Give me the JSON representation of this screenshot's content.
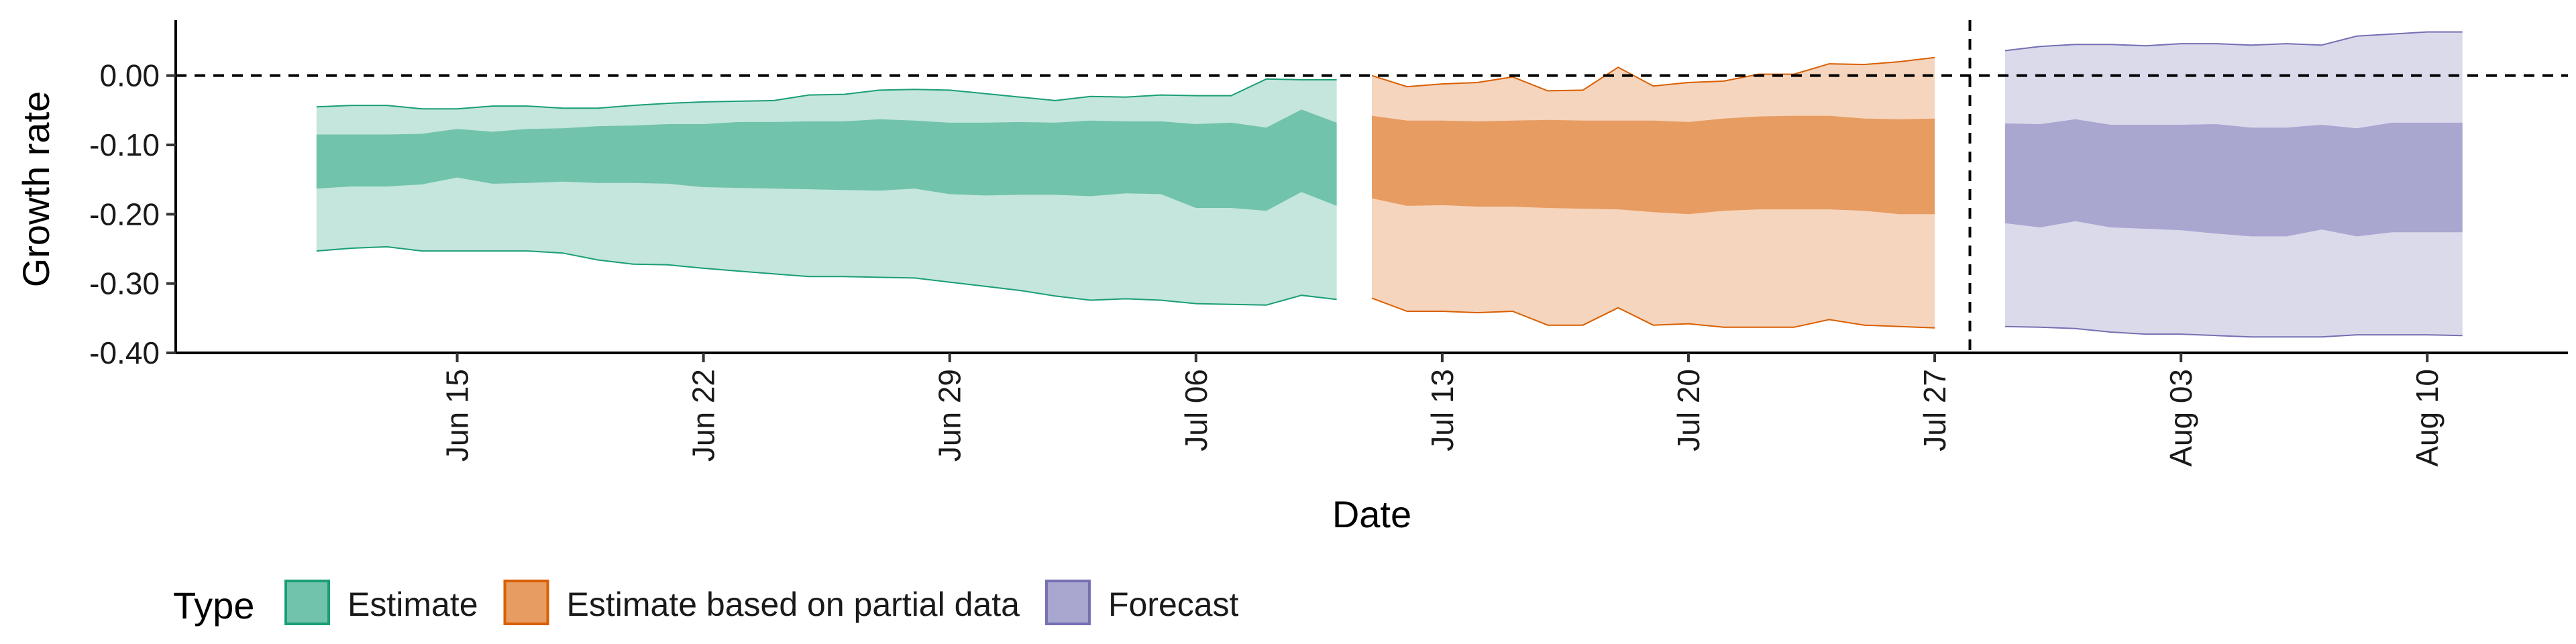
{
  "chart_data": {
    "type": "area",
    "title": "",
    "xlabel": "Date",
    "ylabel": "Growth rate",
    "x_range": [
      "2020-06-07",
      "2020-08-14"
    ],
    "ylim": [
      -0.4,
      0.08
    ],
    "y_ticks": [
      0.0,
      -0.1,
      -0.2,
      -0.3,
      -0.4
    ],
    "y_tick_labels": [
      "0.00",
      "-0.10",
      "-0.20",
      "-0.30",
      "-0.40"
    ],
    "x_ticks": [
      "2020-06-15",
      "2020-06-22",
      "2020-06-29",
      "2020-07-06",
      "2020-07-13",
      "2020-07-20",
      "2020-07-27",
      "2020-08-03",
      "2020-08-10"
    ],
    "x_tick_labels": [
      "Jun 15",
      "Jun 22",
      "Jun 29",
      "Jul 06",
      "Jul 13",
      "Jul 20",
      "Jul 27",
      "Aug 03",
      "Aug 10"
    ],
    "reference_lines": [
      {
        "axis": "y",
        "value": 0.0,
        "style": "dashed"
      },
      {
        "axis": "x",
        "value": "2020-07-28",
        "style": "dashed"
      }
    ],
    "legend": {
      "title": "Type",
      "position": "bottom-left"
    },
    "series": [
      {
        "name": "Estimate",
        "color": "#1b9e77",
        "x": [
          "2020-06-11",
          "2020-06-12",
          "2020-06-13",
          "2020-06-14",
          "2020-06-15",
          "2020-06-16",
          "2020-06-17",
          "2020-06-18",
          "2020-06-19",
          "2020-06-20",
          "2020-06-21",
          "2020-06-22",
          "2020-06-23",
          "2020-06-24",
          "2020-06-25",
          "2020-06-26",
          "2020-06-27",
          "2020-06-28",
          "2020-06-29",
          "2020-06-30",
          "2020-07-01",
          "2020-07-02",
          "2020-07-03",
          "2020-07-04",
          "2020-07-05",
          "2020-07-06",
          "2020-07-07",
          "2020-07-08",
          "2020-07-09",
          "2020-07-10"
        ],
        "lower_90": [
          -0.253,
          -0.249,
          -0.247,
          -0.253,
          -0.253,
          -0.253,
          -0.253,
          -0.256,
          -0.266,
          -0.272,
          -0.273,
          -0.278,
          -0.282,
          -0.286,
          -0.29,
          -0.29,
          -0.291,
          -0.292,
          -0.298,
          -0.304,
          -0.31,
          -0.318,
          -0.324,
          -0.322,
          -0.324,
          -0.329,
          -0.33,
          -0.331,
          -0.317,
          -0.323
        ],
        "upper_90": [
          -0.045,
          -0.043,
          -0.043,
          -0.048,
          -0.048,
          -0.044,
          -0.044,
          -0.047,
          -0.047,
          -0.043,
          -0.04,
          -0.038,
          -0.037,
          -0.036,
          -0.028,
          -0.027,
          -0.021,
          -0.02,
          -0.021,
          -0.026,
          -0.031,
          -0.036,
          -0.03,
          -0.031,
          -0.028,
          -0.029,
          -0.029,
          -0.005,
          -0.006,
          -0.006
        ],
        "lower_50": [
          -0.163,
          -0.16,
          -0.16,
          -0.157,
          -0.147,
          -0.156,
          -0.155,
          -0.153,
          -0.155,
          -0.155,
          -0.156,
          -0.161,
          -0.162,
          -0.163,
          -0.164,
          -0.165,
          -0.166,
          -0.163,
          -0.171,
          -0.173,
          -0.172,
          -0.172,
          -0.174,
          -0.17,
          -0.171,
          -0.191,
          -0.191,
          -0.195,
          -0.168,
          -0.188
        ],
        "upper_50": [
          -0.085,
          -0.085,
          -0.085,
          -0.084,
          -0.077,
          -0.081,
          -0.077,
          -0.076,
          -0.073,
          -0.072,
          -0.07,
          -0.07,
          -0.067,
          -0.067,
          -0.066,
          -0.066,
          -0.063,
          -0.065,
          -0.068,
          -0.068,
          -0.067,
          -0.068,
          -0.065,
          -0.066,
          -0.066,
          -0.07,
          -0.068,
          -0.075,
          -0.049,
          -0.068
        ]
      },
      {
        "name": "Estimate based on partial data",
        "color": "#d95f02",
        "x": [
          "2020-07-11",
          "2020-07-12",
          "2020-07-13",
          "2020-07-14",
          "2020-07-15",
          "2020-07-16",
          "2020-07-17",
          "2020-07-18",
          "2020-07-19",
          "2020-07-20",
          "2020-07-21",
          "2020-07-22",
          "2020-07-23",
          "2020-07-24",
          "2020-07-25",
          "2020-07-26",
          "2020-07-27"
        ],
        "lower_90": [
          -0.321,
          -0.34,
          -0.34,
          -0.342,
          -0.34,
          -0.36,
          -0.36,
          -0.335,
          -0.36,
          -0.358,
          -0.363,
          -0.363,
          -0.363,
          -0.352,
          -0.36,
          -0.362,
          -0.364
        ],
        "upper_90": [
          0.0,
          -0.016,
          -0.012,
          -0.01,
          -0.002,
          -0.022,
          -0.021,
          0.012,
          -0.015,
          -0.01,
          -0.008,
          0.002,
          0.002,
          0.017,
          0.016,
          0.02,
          0.026
        ],
        "lower_50": [
          -0.177,
          -0.188,
          -0.187,
          -0.189,
          -0.189,
          -0.191,
          -0.192,
          -0.193,
          -0.197,
          -0.2,
          -0.195,
          -0.193,
          -0.193,
          -0.193,
          -0.195,
          -0.2,
          -0.2
        ],
        "upper_50": [
          -0.058,
          -0.065,
          -0.065,
          -0.066,
          -0.065,
          -0.064,
          -0.065,
          -0.065,
          -0.065,
          -0.067,
          -0.062,
          -0.059,
          -0.058,
          -0.058,
          -0.062,
          -0.063,
          -0.062
        ]
      },
      {
        "name": "Forecast",
        "color": "#7570b3",
        "x": [
          "2020-07-29",
          "2020-07-30",
          "2020-07-31",
          "2020-08-01",
          "2020-08-02",
          "2020-08-03",
          "2020-08-04",
          "2020-08-05",
          "2020-08-06",
          "2020-08-07",
          "2020-08-08",
          "2020-08-09",
          "2020-08-10",
          "2020-08-11"
        ],
        "lower_90": [
          -0.362,
          -0.363,
          -0.365,
          -0.37,
          -0.373,
          -0.373,
          -0.375,
          -0.377,
          -0.377,
          -0.377,
          -0.374,
          -0.374,
          -0.374,
          -0.375
        ],
        "upper_90": [
          0.036,
          0.042,
          0.045,
          0.045,
          0.043,
          0.046,
          0.046,
          0.044,
          0.046,
          0.044,
          0.057,
          0.06,
          0.063,
          0.063
        ],
        "lower_50": [
          -0.213,
          -0.219,
          -0.21,
          -0.219,
          -0.221,
          -0.223,
          -0.228,
          -0.232,
          -0.232,
          -0.222,
          -0.232,
          -0.226,
          -0.226,
          -0.226
        ],
        "upper_50": [
          -0.069,
          -0.07,
          -0.063,
          -0.071,
          -0.071,
          -0.071,
          -0.07,
          -0.075,
          -0.075,
          -0.071,
          -0.076,
          -0.068,
          -0.068,
          -0.068
        ]
      }
    ]
  }
}
